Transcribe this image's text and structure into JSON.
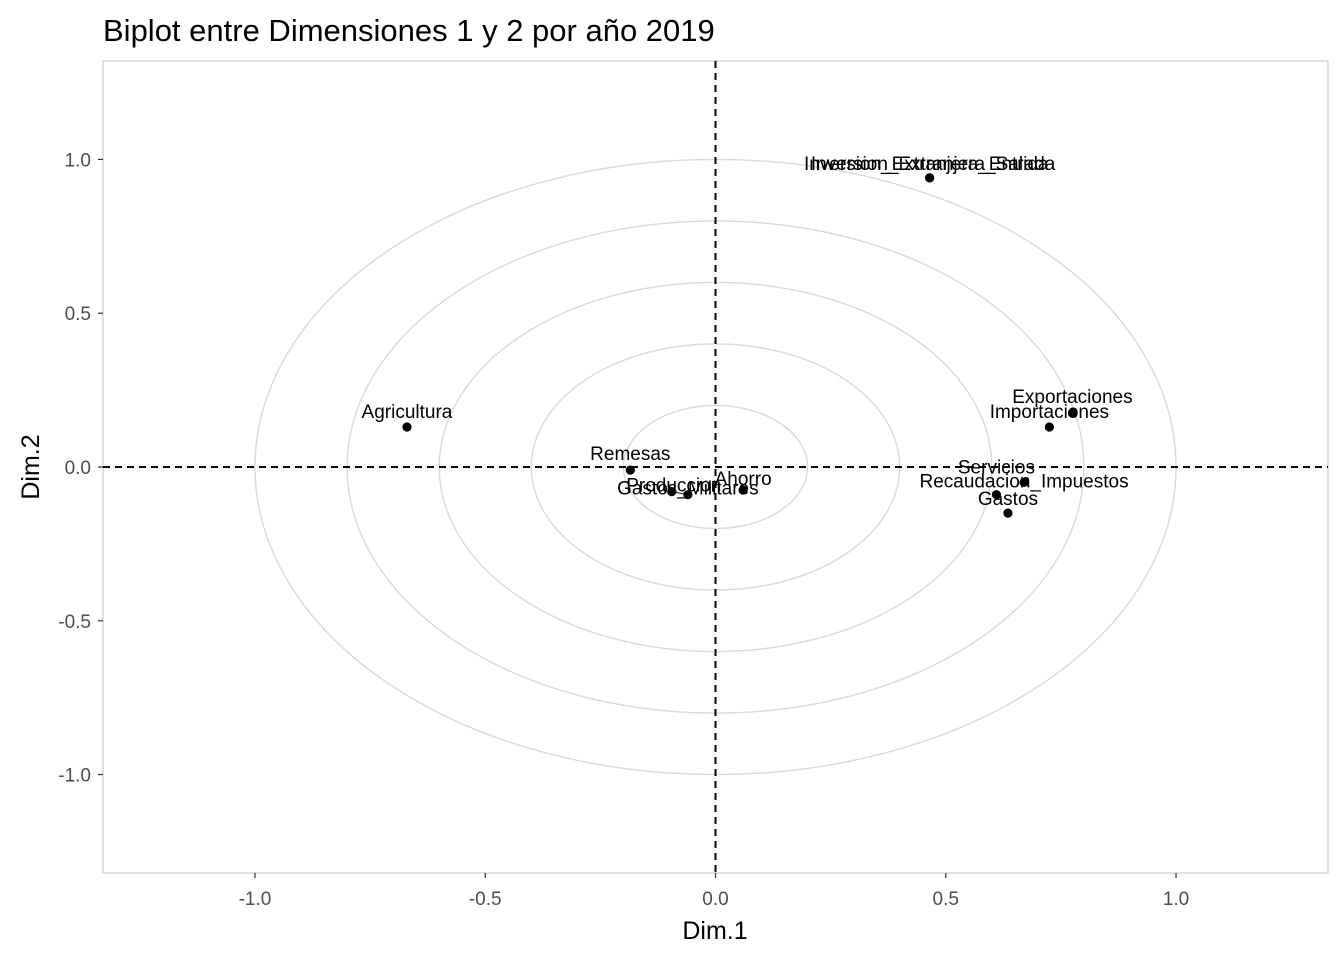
{
  "chart_data": {
    "type": "scatter",
    "title": "Biplot entre Dimensiones 1 y 2 por año 2019",
    "xlabel": "Dim.1",
    "ylabel": "Dim.2",
    "xlim": [
      -1.33,
      1.33
    ],
    "ylim": [
      -1.32,
      1.32
    ],
    "xticks": [
      -1.0,
      -0.5,
      0.0,
      0.5,
      1.0
    ],
    "yticks": [
      -1.0,
      -0.5,
      0.0,
      0.5,
      1.0
    ],
    "xtick_labels": [
      "-1.0",
      "-0.5",
      "0.0",
      "0.5",
      "1.0"
    ],
    "ytick_labels": [
      "-1.0",
      "-0.5",
      "0.0",
      "0.5",
      "1.0"
    ],
    "reference_lines": {
      "x": 0,
      "y": 0,
      "style": "dashed"
    },
    "grid": false,
    "circles": [
      0.2,
      0.4,
      0.6,
      0.8,
      1.0
    ],
    "points": [
      {
        "label": "Inversion_Extranjera_Entrada",
        "x": 0.465,
        "y": 0.94
      },
      {
        "label": "Inversion_Extranjera_Salida",
        "x": 0.465,
        "y": 0.94
      },
      {
        "label": "Agricultura",
        "x": -0.67,
        "y": 0.13
      },
      {
        "label": "Exportaciones",
        "x": 0.775,
        "y": 0.175
      },
      {
        "label": "Importaciones",
        "x": 0.725,
        "y": 0.13
      },
      {
        "label": "Remesas",
        "x": -0.185,
        "y": -0.01
      },
      {
        "label": "Produccion",
        "x": -0.095,
        "y": -0.08
      },
      {
        "label": "Gastos_Militares",
        "x": -0.06,
        "y": -0.09
      },
      {
        "label": "Ahorro",
        "x": 0.06,
        "y": -0.075
      },
      {
        "label": "Servicios",
        "x": 0.61,
        "y": -0.09
      },
      {
        "label": "Recaudacion_Impuestos",
        "x": 0.67,
        "y": -0.05
      },
      {
        "label": "Gastos",
        "x": 0.635,
        "y": -0.15
      }
    ]
  }
}
